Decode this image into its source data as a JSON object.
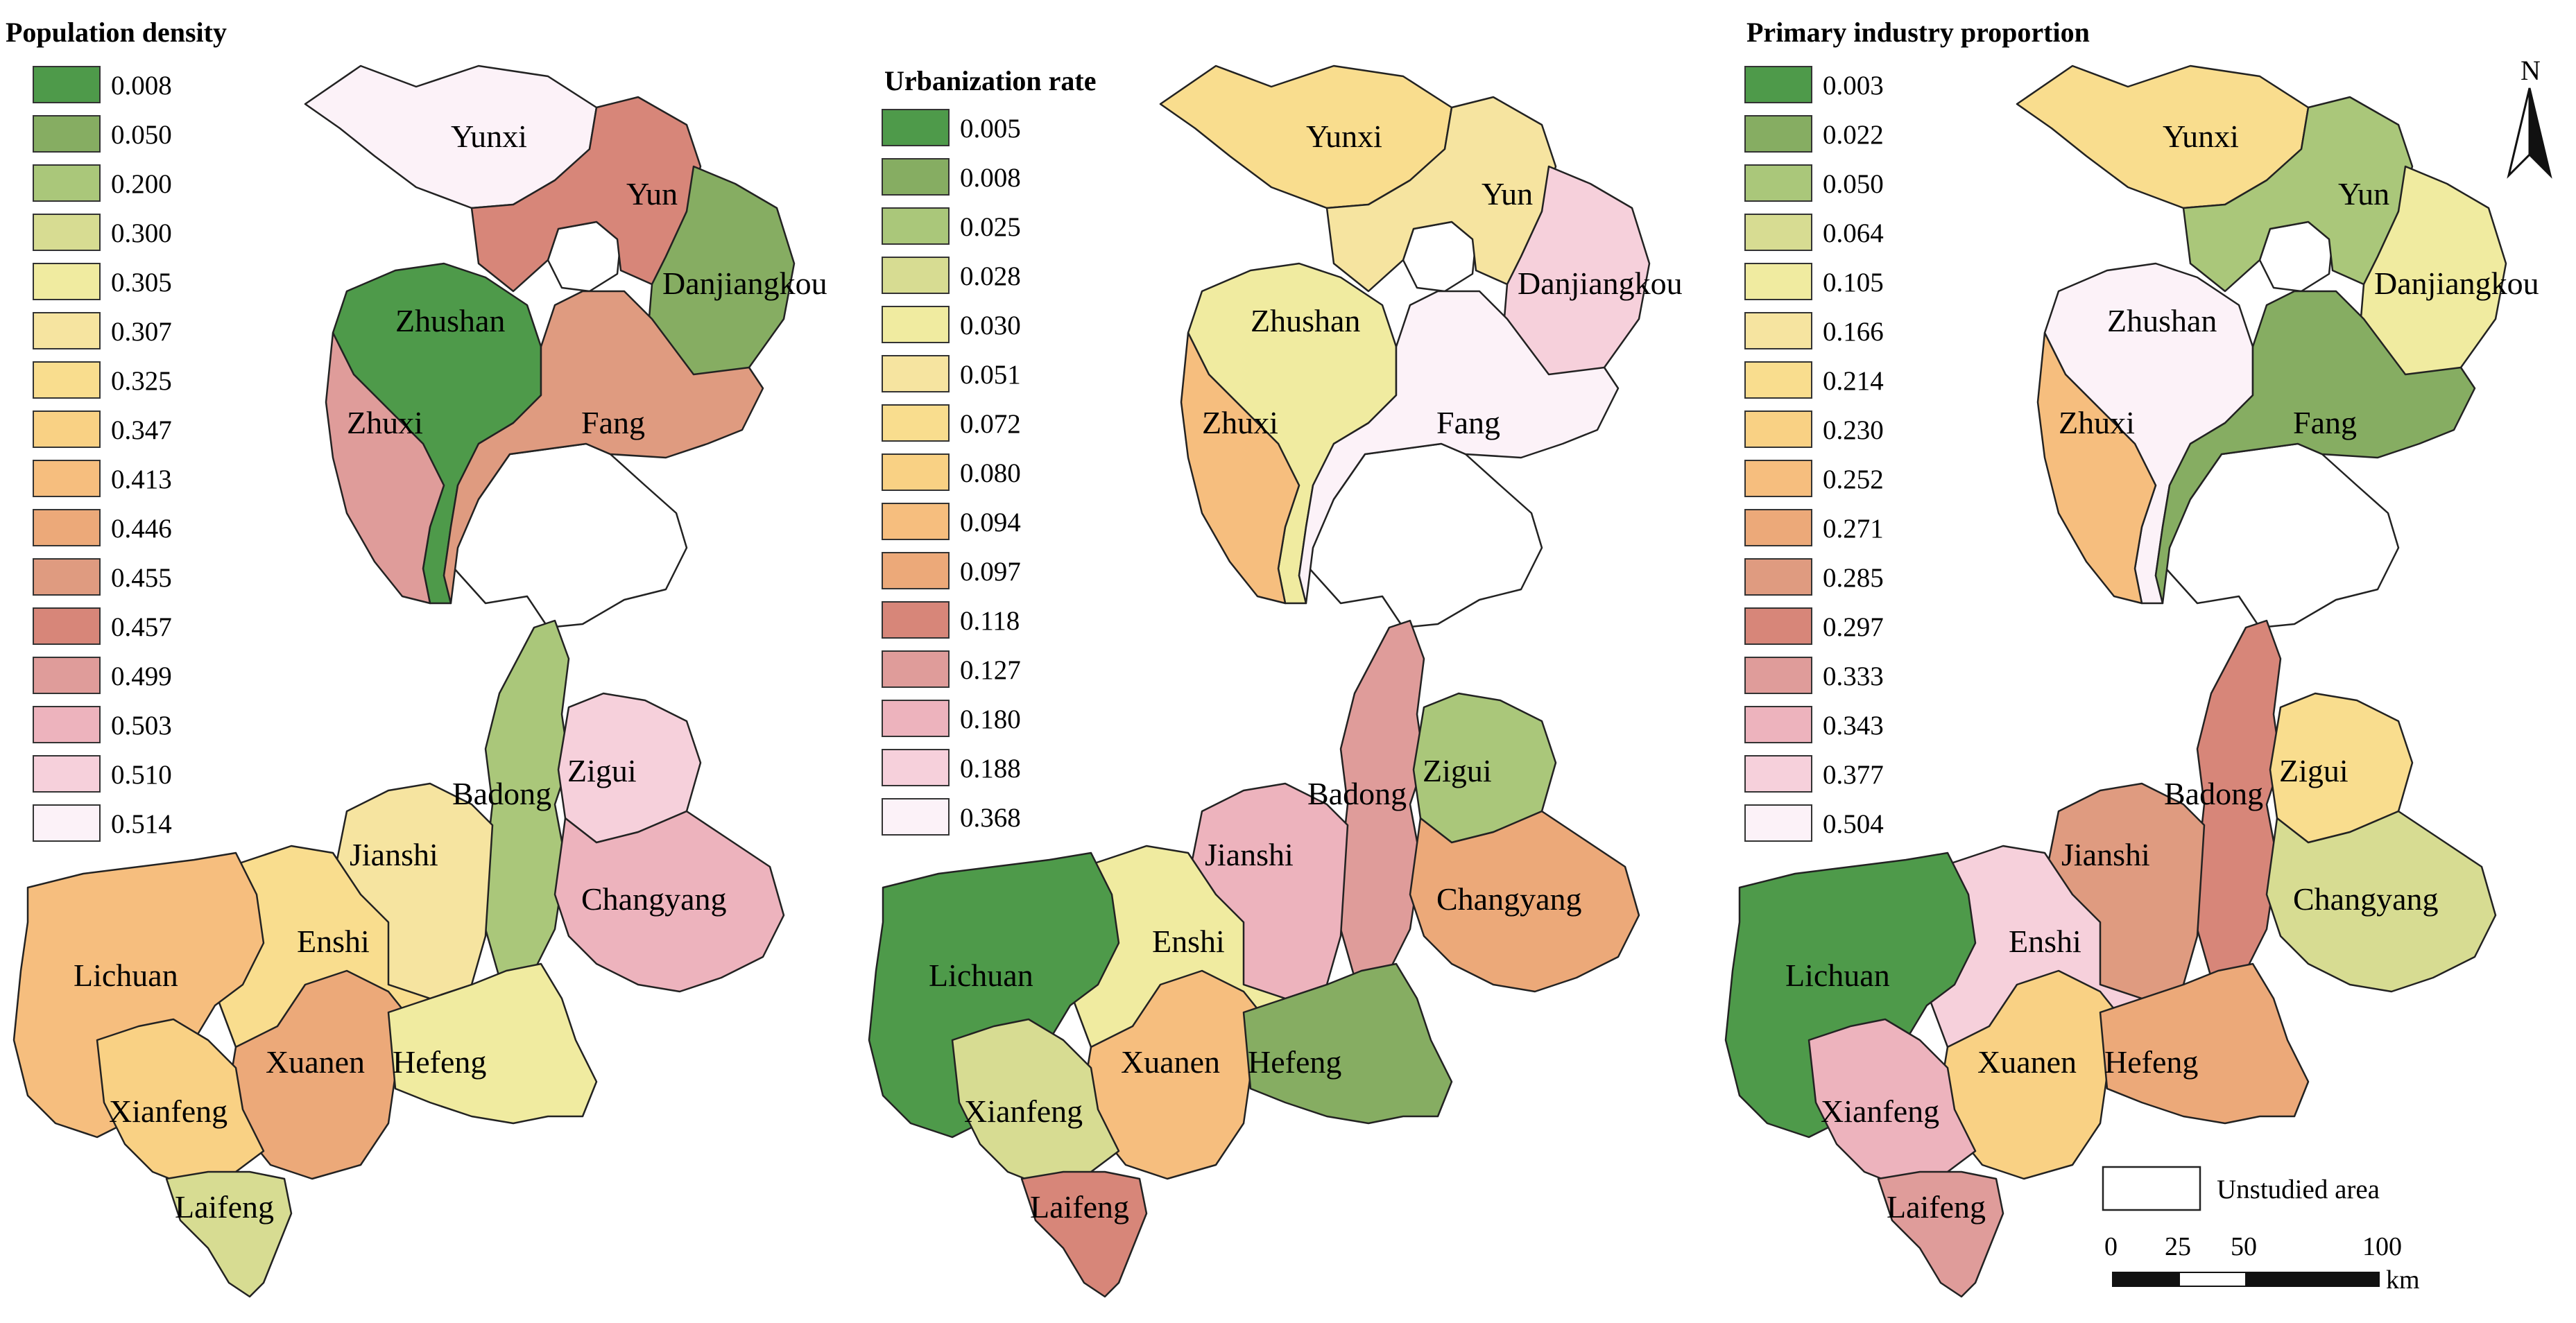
{
  "maps": [
    {
      "title": "Population density",
      "legend": [
        {
          "value": "0.008",
          "color": "#4e9a4a"
        },
        {
          "value": "0.050",
          "color": "#86ad62"
        },
        {
          "value": "0.200",
          "color": "#aac77a"
        },
        {
          "value": "0.300",
          "color": "#d7dc92"
        },
        {
          "value": "0.305",
          "color": "#f0eba0"
        },
        {
          "value": "0.307",
          "color": "#f6e4a0"
        },
        {
          "value": "0.325",
          "color": "#f9dd8e"
        },
        {
          "value": "0.347",
          "color": "#f9d184"
        },
        {
          "value": "0.413",
          "color": "#f6be7e"
        },
        {
          "value": "0.446",
          "color": "#eca979"
        },
        {
          "value": "0.455",
          "color": "#df9b80"
        },
        {
          "value": "0.457",
          "color": "#d78679"
        },
        {
          "value": "0.499",
          "color": "#df9c9a"
        },
        {
          "value": "0.503",
          "color": "#edb3bd"
        },
        {
          "value": "0.510",
          "color": "#f6d0db"
        },
        {
          "value": "0.514",
          "color": "#fcf2f8"
        }
      ],
      "counties": {
        "Yunxi": "#fcf2f8",
        "Yun": "#d78679",
        "Danjiangkou": "#86ad62",
        "Zhushan": "#4e9a4a",
        "Zhuxi": "#df9c9a",
        "Fang": "#df9b80",
        "Badong": "#aac77a",
        "Zigui": "#f6d0db",
        "Jianshi": "#f6e4a0",
        "Changyang": "#edb3bd",
        "Enshi": "#f9dd8e",
        "Lichuan": "#f6be7e",
        "Xuanen": "#eca979",
        "Hefeng": "#f0eba0",
        "Xianfeng": "#f9d184",
        "Laifeng": "#d7dc92"
      }
    },
    {
      "title": "Urbanization rate",
      "legend": [
        {
          "value": "0.005",
          "color": "#4e9a4a"
        },
        {
          "value": "0.008",
          "color": "#86ad62"
        },
        {
          "value": "0.025",
          "color": "#aac77a"
        },
        {
          "value": "0.028",
          "color": "#d7dc92"
        },
        {
          "value": "0.030",
          "color": "#f0eba0"
        },
        {
          "value": "0.051",
          "color": "#f6e4a0"
        },
        {
          "value": "0.072",
          "color": "#f9dd8e"
        },
        {
          "value": "0.080",
          "color": "#f9d184"
        },
        {
          "value": "0.094",
          "color": "#f6be7e"
        },
        {
          "value": "0.097",
          "color": "#eca979"
        },
        {
          "value": "0.118",
          "color": "#d78679"
        },
        {
          "value": "0.127",
          "color": "#df9c9a"
        },
        {
          "value": "0.180",
          "color": "#edb3bd"
        },
        {
          "value": "0.188",
          "color": "#f6d0db"
        },
        {
          "value": "0.368",
          "color": "#fcf2f8"
        }
      ],
      "counties": {
        "Yunxi": "#f9dd8e",
        "Yun": "#f6e4a0",
        "Danjiangkou": "#f6d0db",
        "Zhushan": "#f0eba0",
        "Zhuxi": "#f6be7e",
        "Fang": "#fcf2f8",
        "Badong": "#df9c9a",
        "Zigui": "#aac77a",
        "Jianshi": "#edb3bd",
        "Changyang": "#eca979",
        "Enshi": "#f0eba0",
        "Lichuan": "#4e9a4a",
        "Xuanen": "#f6be7e",
        "Hefeng": "#86ad62",
        "Xianfeng": "#d7dc92",
        "Laifeng": "#d78679"
      }
    },
    {
      "title": "Primary industry proportion",
      "legend": [
        {
          "value": "0.003",
          "color": "#4e9a4a"
        },
        {
          "value": "0.022",
          "color": "#86ad62"
        },
        {
          "value": "0.050",
          "color": "#aac77a"
        },
        {
          "value": "0.064",
          "color": "#d7dc92"
        },
        {
          "value": "0.105",
          "color": "#f0eba0"
        },
        {
          "value": "0.166",
          "color": "#f6e4a0"
        },
        {
          "value": "0.214",
          "color": "#f9dd8e"
        },
        {
          "value": "0.230",
          "color": "#f9d184"
        },
        {
          "value": "0.252",
          "color": "#f6be7e"
        },
        {
          "value": "0.271",
          "color": "#eca979"
        },
        {
          "value": "0.285",
          "color": "#df9b80"
        },
        {
          "value": "0.297",
          "color": "#d78679"
        },
        {
          "value": "0.333",
          "color": "#df9c9a"
        },
        {
          "value": "0.343",
          "color": "#edb3bd"
        },
        {
          "value": "0.377",
          "color": "#f6d0db"
        },
        {
          "value": "0.504",
          "color": "#fcf2f8"
        }
      ],
      "counties": {
        "Yunxi": "#f9dd8e",
        "Yun": "#aac77a",
        "Danjiangkou": "#f0eba0",
        "Zhushan": "#fcf2f8",
        "Zhuxi": "#f6be7e",
        "Fang": "#86ad62",
        "Badong": "#d78679",
        "Zigui": "#f9dd8e",
        "Jianshi": "#df9b80",
        "Changyang": "#d7dc92",
        "Enshi": "#f6d0db",
        "Lichuan": "#4e9a4a",
        "Xuanen": "#f9d184",
        "Hefeng": "#eca979",
        "Xianfeng": "#edb3bd",
        "Laifeng": "#df9c9a"
      }
    }
  ],
  "unstudied_label": "Unstudied area",
  "scale_bar": {
    "ticks": [
      "0",
      "25",
      "50",
      "100"
    ],
    "unit": "km"
  },
  "north_label": "N"
}
